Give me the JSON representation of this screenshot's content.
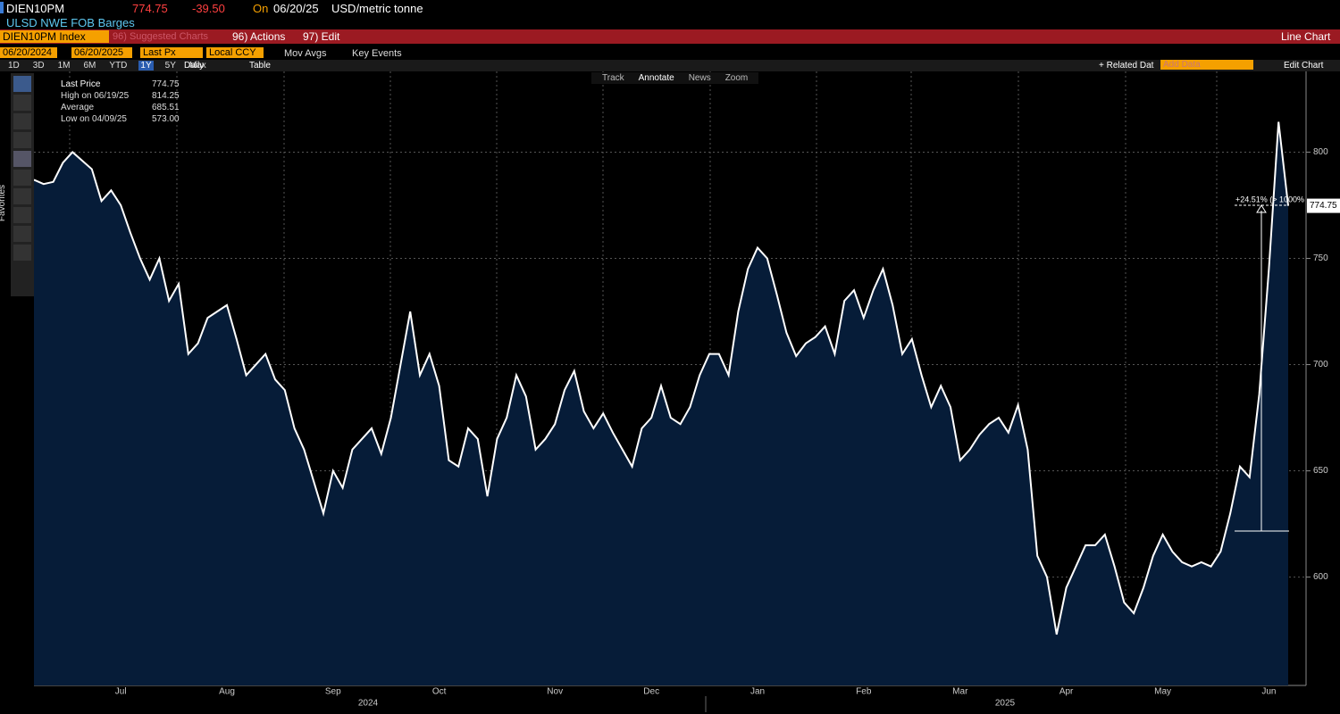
{
  "header": {
    "ticker": "DIEN10PM",
    "price": "774.75",
    "change": "-39.50",
    "on": "On",
    "date": "06/20/25",
    "unit": "USD/metric tonne",
    "name": "ULSD NWE FOB Barges"
  },
  "menu": {
    "security": "DIEN10PM Index",
    "suggested": "96) Suggested Charts",
    "actions": "96) Actions",
    "edit": "97) Edit",
    "chart_type": "Line Chart"
  },
  "controls": {
    "start": "06/20/2024",
    "end": "06/20/2025",
    "field": "Last Px",
    "currency": "Local CCY",
    "mov_avgs": "Mov Avgs",
    "key_events": "Key Events"
  },
  "periods": [
    "1D",
    "3D",
    "1M",
    "6M",
    "YTD",
    "1Y",
    "5Y",
    "Max"
  ],
  "frequency": "Daily",
  "table": "Table",
  "right_tools": {
    "related": "+ Related Dat",
    "add": "Add Data",
    "edit_chart": "Edit Chart"
  },
  "chart_tools": [
    "Track",
    "Annotate",
    "News",
    "Zoom"
  ],
  "favorites": "Favorites",
  "legend": [
    {
      "label": "Last Price",
      "value": "774.75"
    },
    {
      "label": "High on 06/19/25",
      "value": "814.25"
    },
    {
      "label": "Average",
      "value": "685.51"
    },
    {
      "label": "Low on 04/09/25",
      "value": "573.00"
    }
  ],
  "annotation": "+24.51% (> 1000%",
  "years": [
    "2024",
    "2025"
  ],
  "chart_data": {
    "type": "area",
    "color": "#ffffff",
    "fill": "#061c38",
    "categories": [
      null,
      null,
      null,
      null,
      null,
      null,
      null,
      null,
      null,
      "Jul",
      null,
      null,
      null,
      null,
      null,
      null,
      null,
      null,
      null,
      null,
      "Aug",
      null,
      null,
      null,
      null,
      null,
      null,
      null,
      null,
      null,
      null,
      "Sep",
      null,
      null,
      null,
      null,
      null,
      null,
      null,
      null,
      null,
      null,
      "Oct",
      null,
      null,
      null,
      null,
      null,
      null,
      null,
      null,
      null,
      null,
      null,
      "Nov",
      null,
      null,
      null,
      null,
      null,
      null,
      null,
      null,
      null,
      "Dec",
      null,
      null,
      null,
      null,
      null,
      null,
      null,
      null,
      null,
      null,
      "Jan",
      null,
      null,
      null,
      null,
      null,
      null,
      null,
      null,
      null,
      null,
      "Feb",
      null,
      null,
      null,
      null,
      null,
      null,
      null,
      null,
      null,
      "Mar",
      null,
      null,
      null,
      null,
      null,
      null,
      null,
      null,
      null,
      null,
      "Apr",
      null,
      null,
      null,
      null,
      null,
      null,
      null,
      null,
      null,
      "May",
      null,
      null,
      null,
      null,
      null,
      null,
      null,
      null,
      null,
      null,
      "Jun",
      null,
      null
    ],
    "values": [
      787,
      785,
      786,
      795,
      800,
      796,
      792,
      777,
      782,
      775,
      762,
      750,
      740,
      750,
      730,
      738,
      705,
      710,
      722,
      725,
      728,
      712,
      695,
      700,
      705,
      693,
      688,
      670,
      660,
      645,
      630,
      650,
      642,
      660,
      665,
      670,
      658,
      675,
      700,
      725,
      695,
      705,
      690,
      655,
      652,
      670,
      665,
      638,
      665,
      675,
      695,
      685,
      660,
      665,
      672,
      688,
      697,
      678,
      670,
      677,
      668,
      660,
      652,
      670,
      675,
      690,
      675,
      672,
      680,
      695,
      705,
      705,
      695,
      725,
      745,
      755,
      750,
      733,
      715,
      704,
      710,
      713,
      718,
      705,
      730,
      735,
      722,
      735,
      745,
      728,
      705,
      712,
      695,
      680,
      690,
      680,
      655,
      660,
      667,
      672,
      675,
      668,
      681,
      660,
      610,
      600,
      573,
      595,
      605,
      615,
      615,
      620,
      605,
      588,
      583,
      595,
      610,
      620,
      612,
      607,
      605,
      607,
      605,
      612,
      630,
      652,
      647,
      686,
      745,
      814.25,
      774.75
    ],
    "ylim": [
      549,
      838
    ],
    "yticks": [
      600,
      650,
      700,
      750,
      800
    ],
    "grid": true
  }
}
